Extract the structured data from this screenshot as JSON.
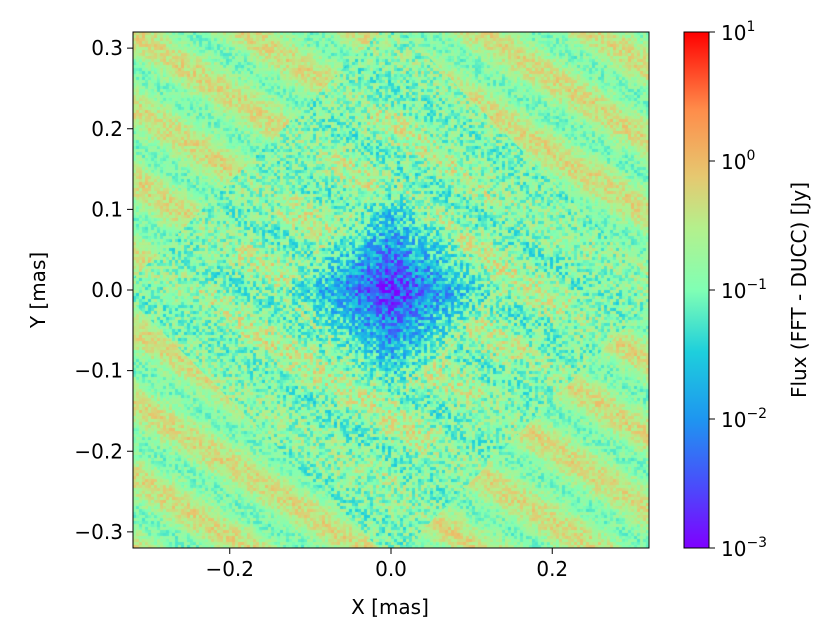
{
  "chart_data": {
    "type": "heatmap",
    "title": "",
    "xlabel": "X [mas]",
    "ylabel": "Y [mas]",
    "xlim": [
      -0.32,
      0.32
    ],
    "ylim": [
      -0.32,
      0.32
    ],
    "x_ticks": [
      -0.2,
      0.0,
      0.2
    ],
    "x_tick_labels": [
      "−0.2",
      "0.0",
      "0.2"
    ],
    "y_ticks": [
      0.3,
      0.2,
      0.1,
      0.0,
      -0.1,
      -0.2,
      -0.3
    ],
    "y_tick_labels": [
      "0.3",
      "0.2",
      "0.1",
      "0.0",
      "−0.1",
      "−0.2",
      "−0.3"
    ],
    "colorscale": "rainbow",
    "color_scale_type": "log",
    "colorbar": {
      "label": "Flux (FFT - DUCC) [Jy]",
      "range": [
        0.001,
        10
      ],
      "ticks": [
        10,
        1,
        0.1,
        0.01,
        0.001
      ],
      "tick_bases": [
        "10",
        "10",
        "10",
        "10",
        "10"
      ],
      "tick_exponents": [
        "1",
        "0",
        "−1",
        "−2",
        "−3"
      ]
    },
    "pattern": {
      "description_values": {
        "center_min_flux": 0.001,
        "typical_mid_flux": 0.1,
        "edge_max_flux": 1.0
      }
    },
    "grid": false
  }
}
